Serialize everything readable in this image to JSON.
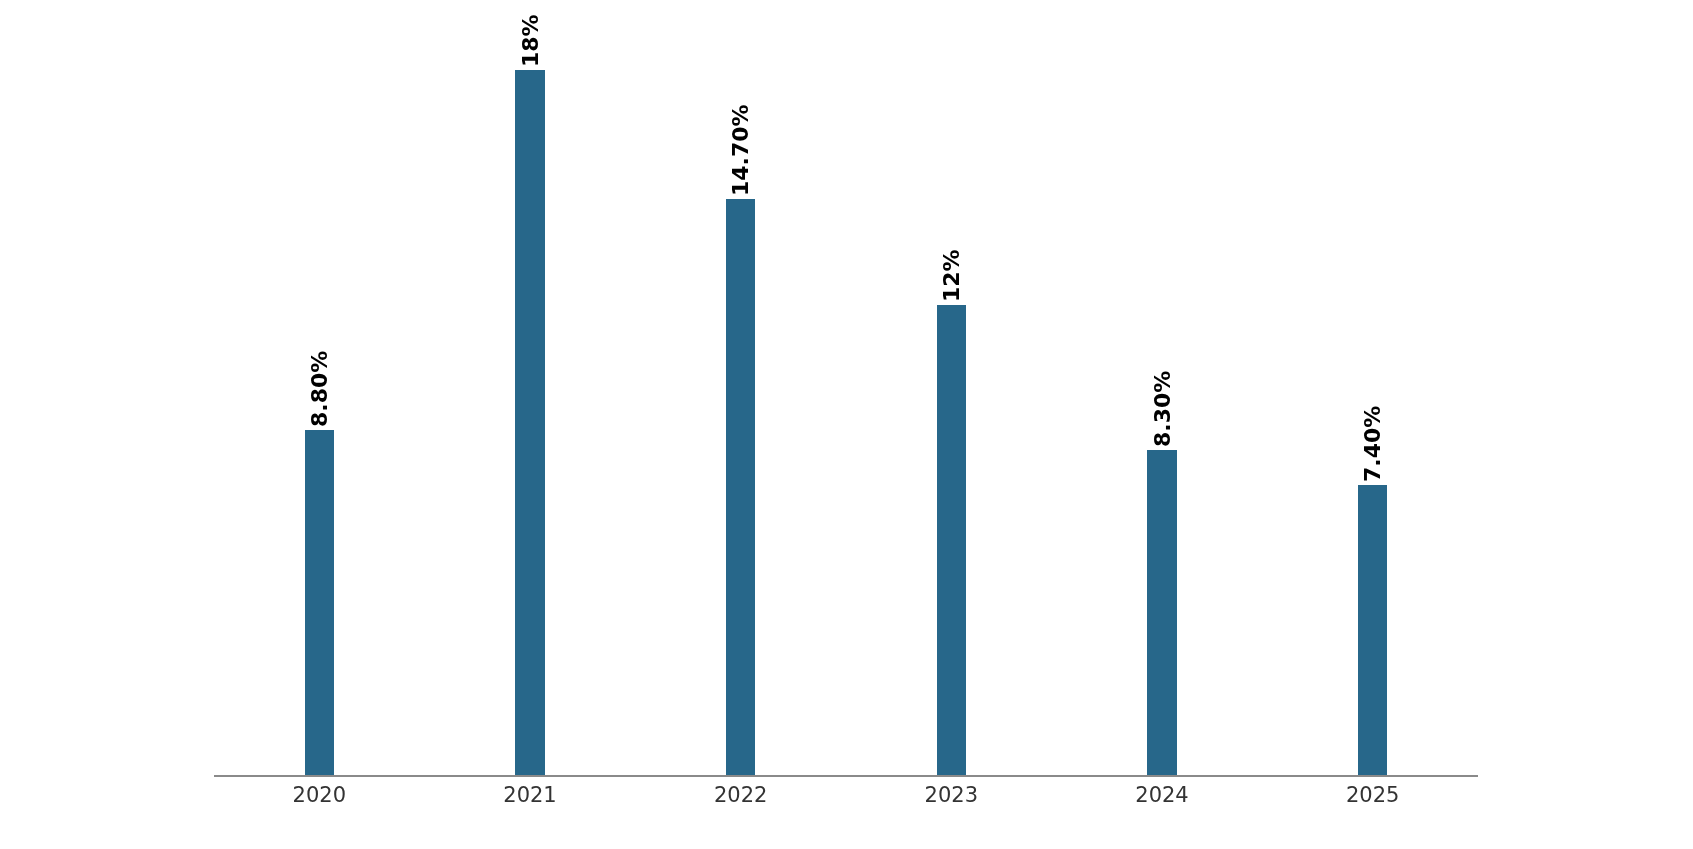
{
  "chart_data": {
    "type": "bar",
    "categories": [
      "2020",
      "2021",
      "2022",
      "2023",
      "2024",
      "2025"
    ],
    "values": [
      8.8,
      18,
      14.7,
      12,
      8.3,
      7.4
    ],
    "value_labels": [
      "8.80%",
      "18%",
      "14.70%",
      "12%",
      "8.30%",
      "7.40%"
    ],
    "color": "#27678a",
    "grid": false,
    "legend": false
  }
}
